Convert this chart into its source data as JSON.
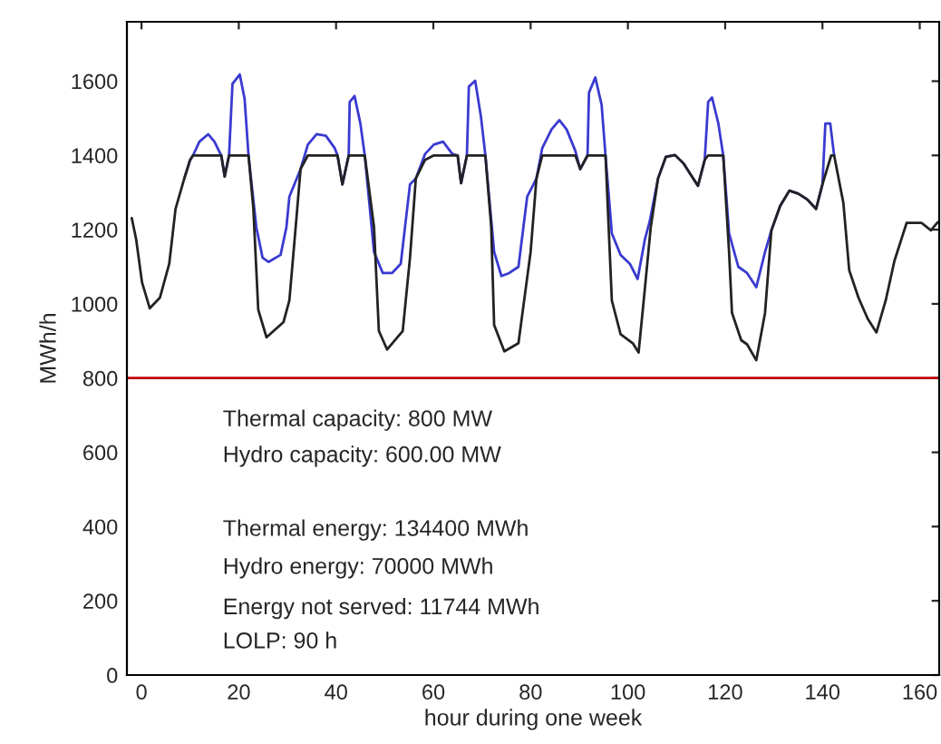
{
  "chart_data": {
    "type": "line",
    "xlabel": "hour during one week",
    "ylabel": "MWh/h",
    "xlim": [
      -3,
      164
    ],
    "ylim": [
      0,
      1760
    ],
    "xticks": [
      0,
      20,
      40,
      60,
      80,
      100,
      120,
      140,
      160
    ],
    "yticks": [
      0,
      200,
      400,
      600,
      800,
      1000,
      1200,
      1400,
      1600
    ],
    "grid": false,
    "legend": false,
    "marker": "none",
    "line_style": "solid",
    "series": [
      {
        "color": "#3a3ad0",
        "x": [
          8.8,
          10,
          10.6,
          11.9,
          13.7,
          15,
          16.4,
          17.1,
          18,
          18.7,
          20.2,
          21.2,
          22,
          23.6,
          24.9,
          26.1,
          28.6,
          29.8,
          30.4,
          32.7,
          34.2,
          36,
          37.9,
          39.7,
          40.3,
          41.3,
          42.6,
          42.8,
          43.8,
          45,
          45.9,
          47.8,
          49.6,
          51.5,
          53.3,
          55.2,
          56.4,
          58.3,
          60.1,
          62,
          63.9,
          65,
          65.7,
          66.9,
          67.3,
          68.6,
          69.8,
          70.7,
          72.5,
          74,
          75.6,
          77.5,
          79.3,
          80.6,
          81.2,
          82.4,
          84.3,
          85.9,
          87.4,
          89.2,
          90.2,
          91.7,
          92,
          93.3,
          94.6,
          95.4,
          96.7,
          98.5,
          100.4,
          102,
          103.5,
          104.5,
          106.2,
          107.8,
          109.7,
          111.4,
          114.4,
          115.8,
          116.5,
          117.3,
          118.6,
          119.6,
          120.8,
          122.7,
          124.5,
          126.4,
          128.2,
          129.5,
          131.3,
          133.2,
          135,
          136.9,
          138.7,
          140,
          140.6,
          141.6,
          142.4
        ],
        "values": [
          1338,
          1388,
          1400,
          1437,
          1457,
          1437,
          1400,
          1343,
          1400,
          1593,
          1618,
          1552,
          1400,
          1207,
          1124,
          1113,
          1132,
          1207,
          1289,
          1363,
          1429,
          1457,
          1453,
          1420,
          1400,
          1322,
          1400,
          1544,
          1560,
          1486,
          1400,
          1140,
          1083,
          1083,
          1108,
          1322,
          1338,
          1404,
          1429,
          1437,
          1404,
          1400,
          1325,
          1400,
          1585,
          1601,
          1503,
          1400,
          1140,
          1075,
          1083,
          1100,
          1289,
          1322,
          1338,
          1420,
          1470,
          1495,
          1470,
          1412,
          1363,
          1400,
          1569,
          1610,
          1536,
          1400,
          1190,
          1132,
          1108,
          1067,
          1174,
          1223,
          1338,
          1396,
          1401,
          1379,
          1318,
          1388,
          1544,
          1556,
          1486,
          1400,
          1190,
          1100,
          1083,
          1045,
          1140,
          1198,
          1264,
          1305,
          1297,
          1281,
          1256,
          1322,
          1486,
          1486,
          1400
        ]
      },
      {
        "color": "#222222",
        "x": [
          -2,
          -1.1,
          0.1,
          1.7,
          3.8,
          5.7,
          7,
          8.8,
          10,
          10.6,
          16.4,
          17.1,
          18,
          22,
          23,
          24,
          25.7,
          29.2,
          30.4,
          31.7,
          32.7,
          34.2,
          40.3,
          41.3,
          42.6,
          45.9,
          47.8,
          48.8,
          50.5,
          53.7,
          55.2,
          56.4,
          58.3,
          60.1,
          65,
          65.7,
          66.9,
          70.7,
          71.9,
          72.5,
          74.6,
          77.5,
          80,
          81.2,
          82.4,
          89.2,
          90.2,
          91.7,
          95.4,
          96.7,
          98.5,
          101,
          102.2,
          103.5,
          104.7,
          106.2,
          107.8,
          109.7,
          111.4,
          114.4,
          115.8,
          116.5,
          119.6,
          120.8,
          121.4,
          123.3,
          124.5,
          126.4,
          128.2,
          129.5,
          131.3,
          133.2,
          135,
          136.9,
          138.7,
          140,
          141.8,
          142.4,
          144.3,
          145.5,
          147.4,
          149.3,
          151.1,
          153,
          154.8,
          157.3,
          160.4,
          162.3,
          163.7
        ],
        "values": [
          1231,
          1174,
          1058,
          988,
          1017,
          1108,
          1256,
          1338,
          1388,
          1400,
          1400,
          1343,
          1400,
          1400,
          1256,
          984,
          910,
          951,
          1009,
          1207,
          1363,
          1400,
          1400,
          1322,
          1400,
          1400,
          1207,
          927,
          877,
          927,
          1124,
          1338,
          1388,
          1400,
          1400,
          1325,
          1400,
          1400,
          1207,
          943,
          872,
          894,
          1140,
          1338,
          1400,
          1400,
          1363,
          1400,
          1400,
          1009,
          918,
          894,
          869,
          1042,
          1207,
          1338,
          1396,
          1401,
          1379,
          1318,
          1388,
          1400,
          1400,
          1140,
          976,
          902,
          891,
          848,
          976,
          1198,
          1264,
          1305,
          1297,
          1281,
          1256,
          1322,
          1400,
          1400,
          1272,
          1091,
          1017,
          960,
          923,
          1009,
          1116,
          1218,
          1218,
          1198,
          1220
        ]
      }
    ],
    "ref_lines": [
      {
        "axis": "y",
        "value": 800,
        "color": "#c00000"
      }
    ],
    "annotations": [
      "Thermal capacity: 800 MW",
      "Hydro capacity: 600.00 MW",
      "Thermal energy: 134400 MWh",
      "Hydro energy: 70000 MWh",
      "Energy not served: 11744 MWh",
      "LOLP: 90 h"
    ]
  }
}
